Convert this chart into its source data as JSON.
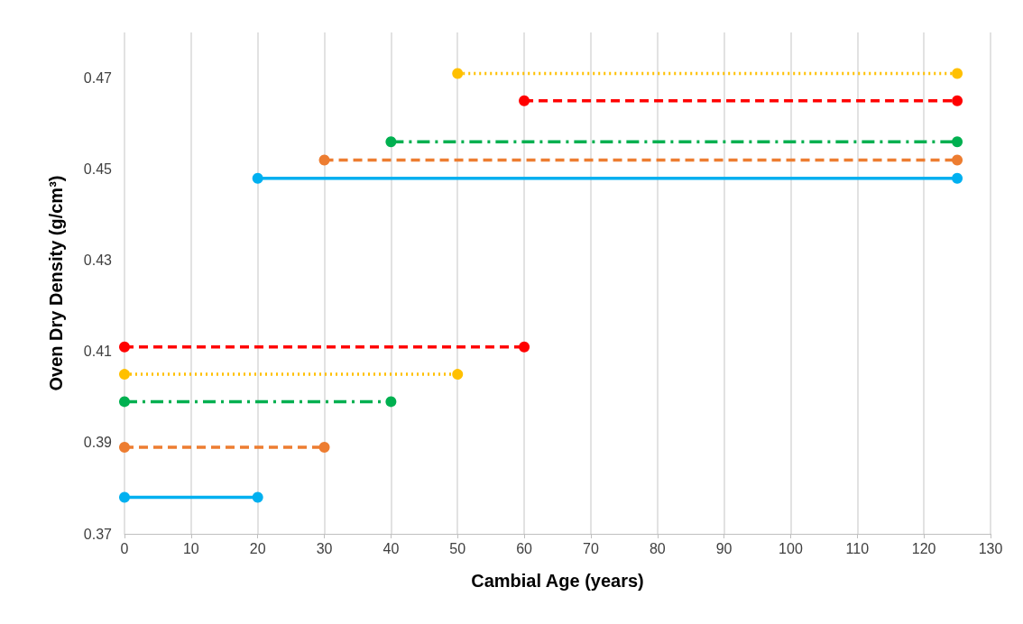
{
  "chart_data": {
    "type": "line",
    "xlabel": "Cambial Age (years)",
    "ylabel": "Oven Dry Density (g/cm³)",
    "xlim": [
      0,
      130
    ],
    "xticks": [
      0,
      10,
      20,
      30,
      40,
      50,
      60,
      70,
      80,
      90,
      100,
      110,
      120,
      130
    ],
    "ylim": [
      0.37,
      0.48
    ],
    "yticks": [
      0.37,
      0.39,
      0.41,
      0.43,
      0.45,
      0.47
    ],
    "grid": "x",
    "marker": "circle",
    "series": [
      {
        "color": "#00b0f0",
        "line_style": "solid",
        "x": [
          0,
          20
        ],
        "values": [
          0.378,
          0.378
        ]
      },
      {
        "color": "#00b0f0",
        "line_style": "solid",
        "x": [
          20,
          125
        ],
        "values": [
          0.448,
          0.448
        ]
      },
      {
        "color": "#ed7d31",
        "line_style": "dashed",
        "x": [
          0,
          30
        ],
        "values": [
          0.389,
          0.389
        ]
      },
      {
        "color": "#ed7d31",
        "line_style": "dashed",
        "x": [
          30,
          125
        ],
        "values": [
          0.452,
          0.452
        ]
      },
      {
        "color": "#00b050",
        "line_style": "dashdot",
        "x": [
          0,
          40
        ],
        "values": [
          0.399,
          0.399
        ]
      },
      {
        "color": "#00b050",
        "line_style": "dashdot",
        "x": [
          40,
          125
        ],
        "values": [
          0.456,
          0.456
        ]
      },
      {
        "color": "#ffc000",
        "line_style": "dotted",
        "x": [
          0,
          50
        ],
        "values": [
          0.405,
          0.405
        ]
      },
      {
        "color": "#ffc000",
        "line_style": "dotted",
        "x": [
          50,
          125
        ],
        "values": [
          0.471,
          0.471
        ]
      },
      {
        "color": "#ff0000",
        "line_style": "dashed",
        "x": [
          0,
          60
        ],
        "values": [
          0.411,
          0.411
        ]
      },
      {
        "color": "#ff0000",
        "line_style": "dashed",
        "x": [
          60,
          125
        ],
        "values": [
          0.465,
          0.465
        ]
      }
    ]
  }
}
